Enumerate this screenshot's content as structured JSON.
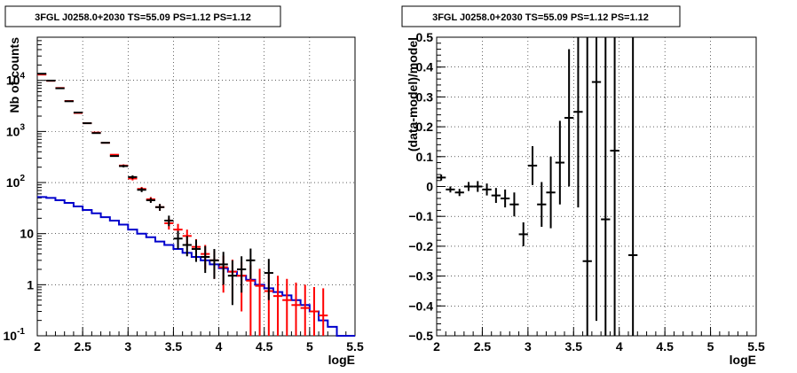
{
  "chart_data": [
    {
      "type": "histogram",
      "title": "3FGL J0258.0+2030 TS=55.09 PS=1.12 PS=1.12",
      "xlabel": "logE",
      "ylabel": "Nb of counts",
      "xlim": [
        2,
        5.5
      ],
      "ylim": [
        0.1,
        70000
      ],
      "y_scale": "log",
      "grid": true,
      "x_ticks": [
        "2",
        "2.5",
        "3",
        "3.5",
        "4",
        "4.5",
        "5",
        "5.5"
      ],
      "y_ticks": [
        {
          "value": 0.1,
          "label": "10",
          "exp": "-1"
        },
        {
          "value": 1,
          "label": "1",
          "exp": ""
        },
        {
          "value": 10,
          "label": "10",
          "exp": ""
        },
        {
          "value": 100,
          "label": "10",
          "exp": "2"
        },
        {
          "value": 1000,
          "label": "10",
          "exp": "3"
        },
        {
          "value": 10000,
          "label": "10",
          "exp": "4"
        }
      ],
      "bins": [
        2.0,
        2.1,
        2.2,
        2.3,
        2.4,
        2.5,
        2.6,
        2.7,
        2.8,
        2.9,
        3.0,
        3.1,
        3.2,
        3.3,
        3.4,
        3.5,
        3.6,
        3.7,
        3.8,
        3.9,
        4.0,
        4.1,
        4.2,
        4.3,
        4.4,
        4.5,
        4.6,
        4.7,
        4.8,
        4.9,
        5.0,
        5.1,
        5.2,
        5.3,
        5.4,
        5.5
      ],
      "series": [
        {
          "role": "data",
          "color": "#000000",
          "x": [
            2.05,
            2.15,
            2.25,
            2.35,
            2.45,
            2.55,
            2.65,
            2.75,
            2.85,
            2.95,
            3.05,
            3.15,
            3.25,
            3.35,
            3.45,
            3.55,
            3.65,
            3.75,
            3.85,
            3.95,
            4.05,
            4.15,
            4.25,
            4.35,
            4.55
          ],
          "y": [
            13500,
            9900,
            7000,
            3900,
            2350,
            1450,
            930,
            600,
            330,
            210,
            128,
            72,
            45,
            33,
            18,
            8,
            6,
            5,
            3.5,
            3,
            2.5,
            1.5,
            2.0,
            3.0,
            1.7
          ],
          "err_low": [
            0.7,
            0.7,
            0.7,
            0.7,
            0.7,
            0.7,
            0.7,
            0.7,
            6,
            12,
            10,
            7,
            5,
            5,
            4,
            3,
            2.4,
            2.2,
            1.8,
            1.7,
            1.5,
            1.1,
            1.3,
            1.7,
            1.2
          ],
          "err_high": [
            0.7,
            0.7,
            0.7,
            0.7,
            0.7,
            0.7,
            0.7,
            0.7,
            6,
            12,
            10,
            7,
            5,
            5,
            4.5,
            3.3,
            3.0,
            2.6,
            2.2,
            2.0,
            1.9,
            1.5,
            1.6,
            2.1,
            1.5
          ]
        },
        {
          "role": "model",
          "color": "#ff0000",
          "x": [
            2.05,
            2.15,
            2.25,
            2.35,
            2.45,
            2.55,
            2.65,
            2.75,
            2.85,
            2.95,
            3.05,
            3.15,
            3.25,
            3.35,
            3.45,
            3.55,
            3.65,
            3.75,
            3.85,
            3.95,
            4.05,
            4.15,
            4.25,
            4.35,
            4.45,
            4.55,
            4.65,
            4.75,
            4.85,
            4.95,
            5.05,
            5.15
          ],
          "y": [
            13000,
            9800,
            7100,
            3950,
            2300,
            1450,
            950,
            600,
            350,
            215,
            120,
            75,
            47,
            33,
            16,
            12,
            9,
            5.5,
            4,
            3,
            2.2,
            1.8,
            1.5,
            1.2,
            0.95,
            0.75,
            0.6,
            0.5,
            0.4,
            0.35,
            0.3,
            0.25
          ],
          "err_low": [
            0.7,
            0.7,
            0.7,
            0.7,
            0.7,
            0.7,
            0.7,
            0.7,
            6,
            12,
            10,
            7,
            5,
            5,
            4,
            3.4,
            3,
            2.3,
            2,
            1.7,
            1.5,
            1.3,
            1.2,
            1.1,
            0.95,
            0.75,
            0.6,
            0.5,
            0.4,
            0.35,
            0.3,
            0.25
          ],
          "err_high": [
            0.7,
            0.7,
            0.7,
            0.7,
            0.7,
            0.7,
            0.7,
            0.7,
            6,
            12,
            10,
            7,
            5,
            5,
            4,
            3.5,
            3,
            2.3,
            2,
            1.7,
            1.5,
            1.3,
            1.3,
            1.2,
            1.1,
            1.0,
            0.9,
            0.8,
            0.7,
            0.65,
            0.6,
            0.6
          ]
        },
        {
          "role": "background",
          "color": "#0000cc",
          "values": [
            52,
            50,
            45,
            40,
            34,
            29,
            25,
            21,
            18,
            15,
            12,
            10,
            8.5,
            7,
            6,
            5,
            4.2,
            3.5,
            3.0,
            2.5,
            2.1,
            1.8,
            1.5,
            1.25,
            1.0,
            0.85,
            0.72,
            0.62,
            0.5,
            0.4,
            0.3,
            0.2,
            0.15,
            0.1,
            0.1
          ]
        }
      ]
    },
    {
      "type": "scatter",
      "title": "3FGL J0258.0+2030 TS=55.09 PS=1.12 PS=1.12",
      "xlabel": "logE",
      "ylabel": "(data-model)/model",
      "xlim": [
        2,
        5.5
      ],
      "ylim": [
        -0.5,
        0.5
      ],
      "grid": true,
      "x_ticks": [
        "2",
        "2.5",
        "3",
        "3.5",
        "4",
        "4.5",
        "5",
        "5.5"
      ],
      "y_ticks": [
        "−0.5",
        "−0.4",
        "−0.3",
        "−0.2",
        "−0.1",
        "0",
        "0.1",
        "0.2",
        "0.3",
        "0.4",
        "0.5"
      ],
      "series": [
        {
          "color": "#000000",
          "x": [
            2.05,
            2.15,
            2.25,
            2.35,
            2.45,
            2.55,
            2.65,
            2.75,
            2.85,
            2.95,
            3.05,
            3.15,
            3.25,
            3.35,
            3.45,
            3.55,
            3.65,
            3.75,
            3.85,
            3.95,
            4.15
          ],
          "y": [
            0.03,
            -0.01,
            -0.02,
            0.0,
            0.0,
            -0.01,
            -0.03,
            -0.04,
            -0.06,
            -0.16,
            0.07,
            -0.06,
            -0.02,
            0.08,
            0.23,
            0.25,
            -0.25,
            0.35,
            -0.11,
            0.12,
            -0.23
          ],
          "err": [
            0.01,
            0.01,
            0.012,
            0.015,
            0.018,
            0.02,
            0.025,
            0.03,
            0.04,
            0.04,
            0.065,
            0.075,
            0.12,
            0.14,
            0.23,
            0.32,
            0.8,
            0.8,
            0.8,
            0.8,
            0.8
          ]
        }
      ]
    }
  ]
}
